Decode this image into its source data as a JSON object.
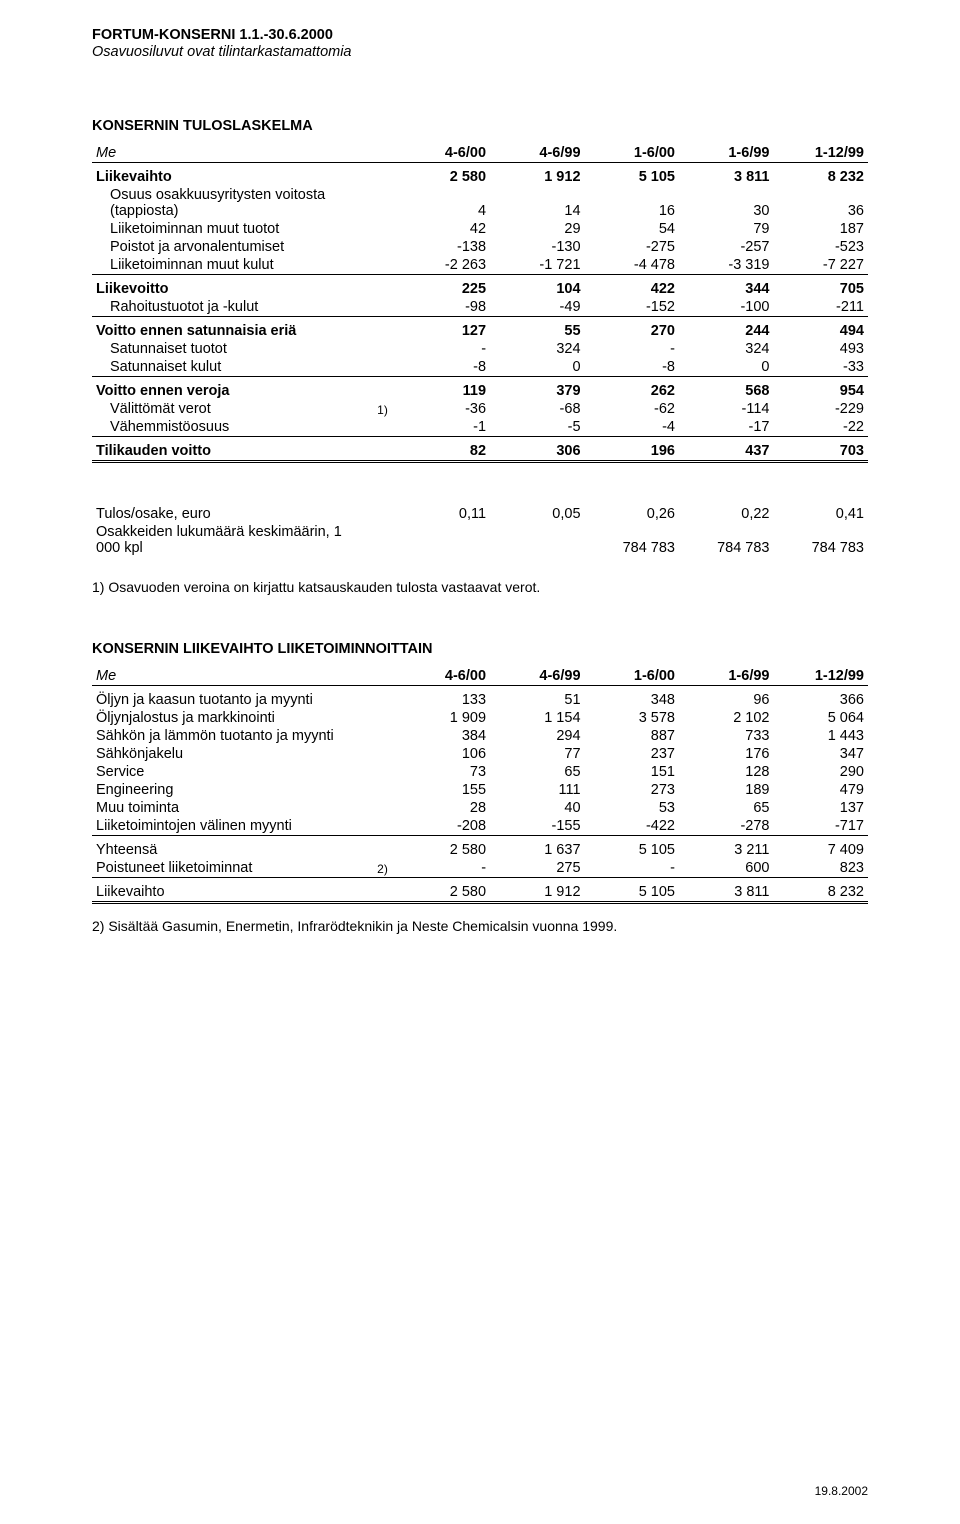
{
  "header": {
    "company_period": "FORTUM-KONSERNI 1.1.-30.6.2000",
    "subtitle_italic": "Osavuosiluvut ovat tilintarkastamattomia"
  },
  "tables": {
    "income": {
      "title": "KONSERNIN TULOSLASKELMA",
      "unit_label": "Me",
      "cols": [
        "4-6/00",
        "4-6/99",
        "1-6/00",
        "1-6/99",
        "1-12/99"
      ],
      "rows": [
        {
          "label": "Liikevaihto",
          "bold": true,
          "vals": [
            "2 580",
            "1 912",
            "5 105",
            "3 811",
            "8 232"
          ],
          "top": "thin"
        },
        {
          "label": "Osuus osakkuusyritysten voitosta (tappiosta)",
          "vals": [
            "4",
            "14",
            "16",
            "30",
            "36"
          ]
        },
        {
          "label": "Liiketoiminnan muut tuotot",
          "vals": [
            "42",
            "29",
            "54",
            "79",
            "187"
          ]
        },
        {
          "label": "Poistot ja arvonalentumiset",
          "vals": [
            "-138",
            "-130",
            "-275",
            "-257",
            "-523"
          ]
        },
        {
          "label": "Liiketoiminnan muut kulut",
          "vals": [
            "-2 263",
            "-1 721",
            "-4 478",
            "-3 319",
            "-7 227"
          ]
        },
        {
          "label": "Liikevoitto",
          "bold": true,
          "vals": [
            "225",
            "104",
            "422",
            "344",
            "705"
          ],
          "top": "thin"
        },
        {
          "label": "Rahoitustuotot ja -kulut",
          "vals": [
            "-98",
            "-49",
            "-152",
            "-100",
            "-211"
          ]
        },
        {
          "label": "Voitto ennen satunnaisia eriä",
          "bold": true,
          "vals": [
            "127",
            "55",
            "270",
            "244",
            "494"
          ],
          "top": "thin"
        },
        {
          "label": "Satunnaiset tuotot",
          "vals": [
            "-",
            "324",
            "-",
            "324",
            "493"
          ]
        },
        {
          "label": "Satunnaiset kulut",
          "vals": [
            "-8",
            "0",
            "-8",
            "0",
            "-33"
          ]
        },
        {
          "label": "Voitto ennen veroja",
          "bold": true,
          "vals": [
            "119",
            "379",
            "262",
            "568",
            "954"
          ],
          "top": "thin"
        },
        {
          "label": "Välittömät verot",
          "note": "1)",
          "vals": [
            "-36",
            "-68",
            "-62",
            "-114",
            "-229"
          ]
        },
        {
          "label": "Vähemmistöosuus",
          "vals": [
            "-1",
            "-5",
            "-4",
            "-17",
            "-22"
          ]
        },
        {
          "label": "Tilikauden voitto",
          "bold": true,
          "vals": [
            "82",
            "306",
            "196",
            "437",
            "703"
          ],
          "top": "thin",
          "doublebot": true
        }
      ],
      "extra_rows": [
        {
          "label": "Tulos/osake, euro",
          "vals": [
            "0,11",
            "0,05",
            "0,26",
            "0,22",
            "0,41"
          ]
        },
        {
          "label": "Osakkeiden lukumäärä keskimäärin, 1 000 kpl",
          "vals": [
            "",
            "",
            "784 783",
            "784 783",
            "784 783"
          ]
        }
      ],
      "footnote": "1) Osavuoden veroina on kirjattu katsauskauden tulosta vastaavat verot."
    },
    "revenue": {
      "title": "KONSERNIN LIIKEVAIHTO LIIKETOIMINNOITTAIN",
      "unit_label": "Me",
      "cols": [
        "4-6/00",
        "4-6/99",
        "1-6/00",
        "1-6/99",
        "1-12/99"
      ],
      "rows": [
        {
          "label": "Öljyn ja kaasun tuotanto ja myynti",
          "vals": [
            "133",
            "51",
            "348",
            "96",
            "366"
          ],
          "top": "thin"
        },
        {
          "label": "Öljynjalostus ja markkinointi",
          "vals": [
            "1 909",
            "1 154",
            "3 578",
            "2 102",
            "5 064"
          ]
        },
        {
          "label": "Sähkön ja lämmön tuotanto ja myynti",
          "vals": [
            "384",
            "294",
            "887",
            "733",
            "1 443"
          ]
        },
        {
          "label": "Sähkönjakelu",
          "vals": [
            "106",
            "77",
            "237",
            "176",
            "347"
          ]
        },
        {
          "label": "Service",
          "vals": [
            "73",
            "65",
            "151",
            "128",
            "290"
          ]
        },
        {
          "label": "Engineering",
          "vals": [
            "155",
            "111",
            "273",
            "189",
            "479"
          ]
        },
        {
          "label": "Muu toiminta",
          "vals": [
            "28",
            "40",
            "53",
            "65",
            "137"
          ]
        },
        {
          "label": "Liiketoimintojen välinen myynti",
          "vals": [
            "-208",
            "-155",
            "-422",
            "-278",
            "-717"
          ]
        },
        {
          "label": "Yhteensä",
          "vals": [
            "2 580",
            "1 637",
            "5 105",
            "3 211",
            "7 409"
          ],
          "top": "thin"
        },
        {
          "label": "Poistuneet liiketoiminnat",
          "note": "2)",
          "vals": [
            "-",
            "275",
            "-",
            "600",
            "823"
          ]
        },
        {
          "label": "Liikevaihto",
          "vals": [
            "2 580",
            "1 912",
            "5 105",
            "3 811",
            "8 232"
          ],
          "top": "thin",
          "doublebot": true
        }
      ],
      "footnote": "2) Sisältää Gasumin, Enermetin, Infrarödteknikin ja Neste Chemicalsin vuonna 1999."
    }
  },
  "footer_date": "19.8.2002"
}
